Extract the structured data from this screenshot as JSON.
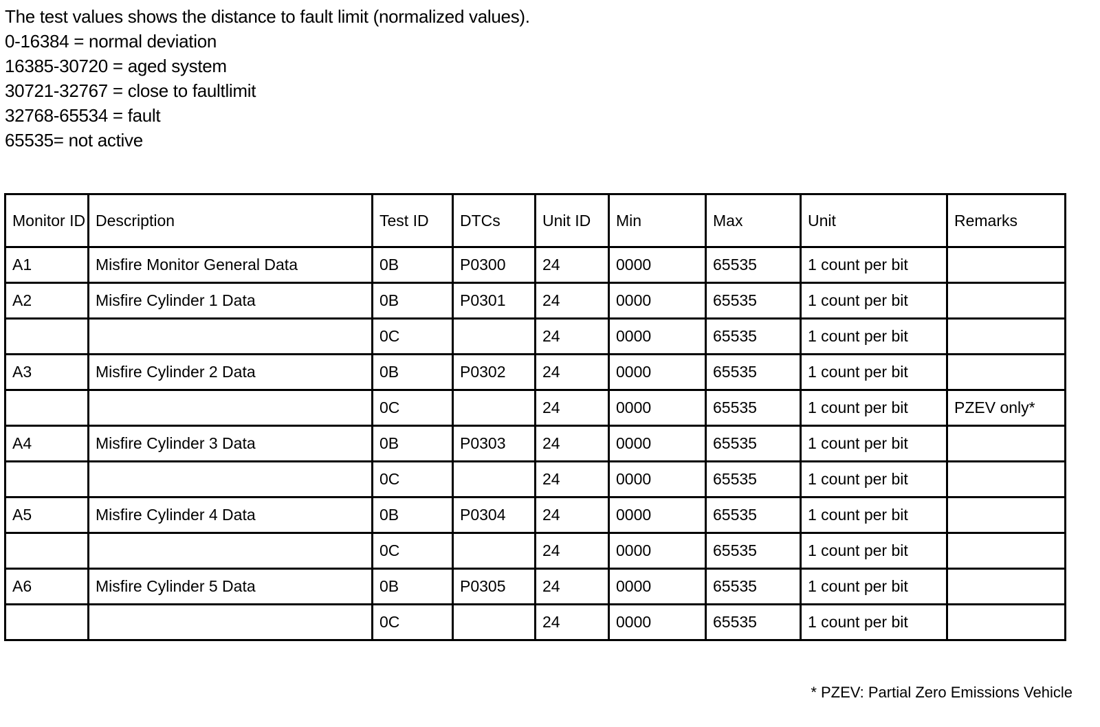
{
  "intro": {
    "heading": "The test values shows the distance to fault limit (normalized values).",
    "ranges": [
      "0-16384 = normal deviation",
      "16385-30720 = aged system",
      "30721-32767 = close to faultlimit",
      "32768-65534 = fault",
      "65535= not active"
    ]
  },
  "table": {
    "headers": [
      "Monitor ID",
      "Description",
      "Test ID",
      "DTCs",
      "Unit ID",
      "Min",
      "Max",
      "Unit",
      "Remarks"
    ],
    "rows": [
      [
        "A1",
        "Misfire Monitor General Data",
        "0B",
        "P0300",
        "24",
        "0000",
        "65535",
        "1 count per bit",
        ""
      ],
      [
        "A2",
        "Misfire Cylinder 1 Data",
        "0B",
        "P0301",
        "24",
        "0000",
        "65535",
        "1 count per bit",
        ""
      ],
      [
        "",
        "",
        "0C",
        "",
        "24",
        "0000",
        "65535",
        "1 count per bit",
        ""
      ],
      [
        "A3",
        "Misfire Cylinder 2 Data",
        "0B",
        "P0302",
        "24",
        "0000",
        "65535",
        "1 count per bit",
        ""
      ],
      [
        "",
        "",
        "0C",
        "",
        "24",
        "0000",
        "65535",
        "1 count per bit",
        "PZEV only*"
      ],
      [
        "A4",
        "Misfire Cylinder 3 Data",
        "0B",
        "P0303",
        "24",
        "0000",
        "65535",
        "1 count per bit",
        ""
      ],
      [
        "",
        "",
        "0C",
        "",
        "24",
        "0000",
        "65535",
        "1 count per bit",
        ""
      ],
      [
        "A5",
        "Misfire Cylinder 4 Data",
        "0B",
        "P0304",
        "24",
        "0000",
        "65535",
        "1 count per bit",
        ""
      ],
      [
        "",
        "",
        "0C",
        "",
        "24",
        "0000",
        "65535",
        "1 count per bit",
        ""
      ],
      [
        "A6",
        "Misfire Cylinder 5 Data",
        "0B",
        "P0305",
        "24",
        "0000",
        "65535",
        "1 count per bit",
        ""
      ],
      [
        "",
        "",
        "0C",
        "",
        "24",
        "0000",
        "65535",
        "1 count per bit",
        ""
      ]
    ]
  },
  "footnote": "* PZEV: Partial Zero Emissions Vehicle"
}
